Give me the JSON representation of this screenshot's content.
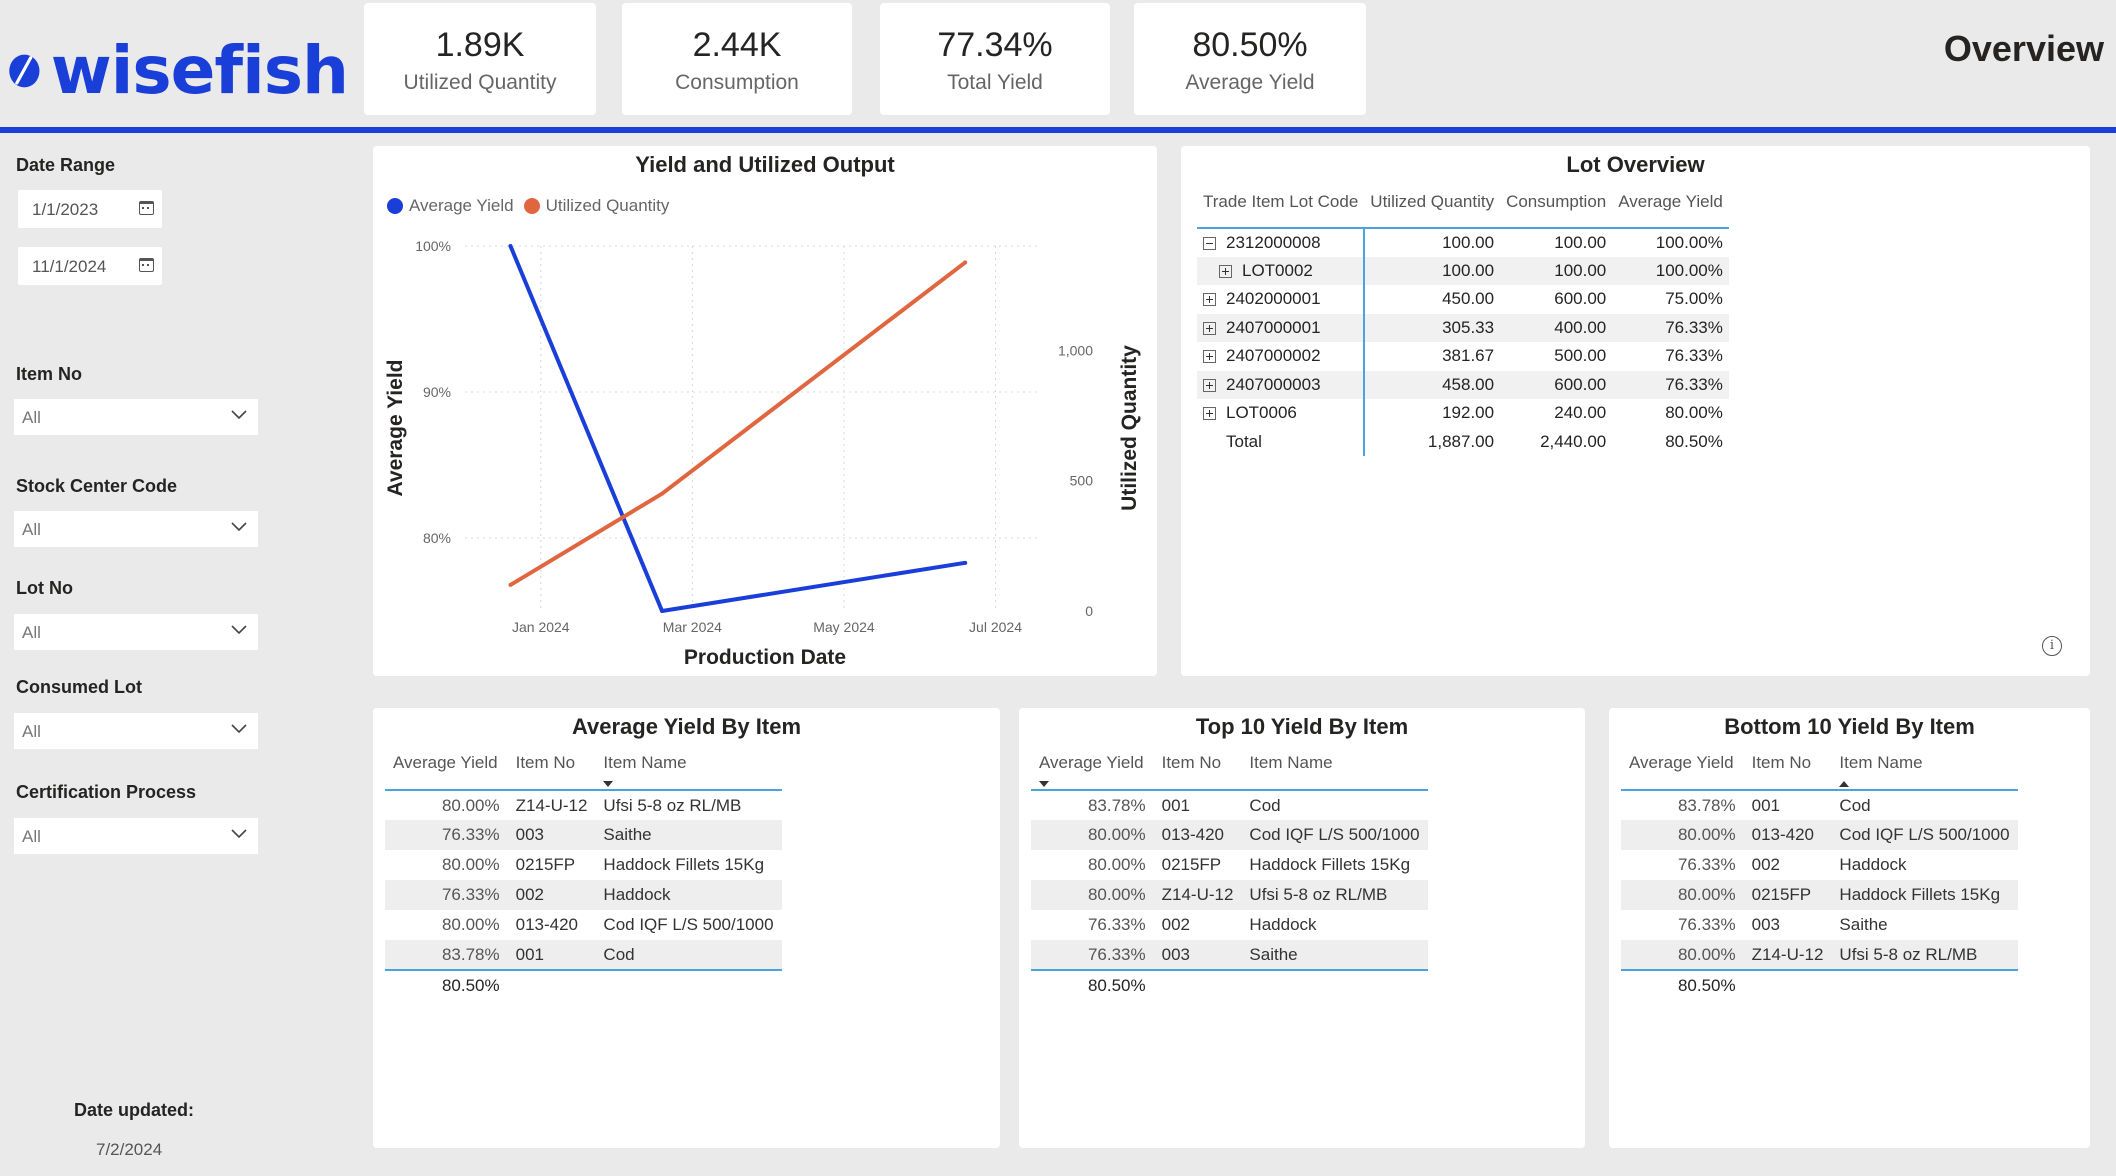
{
  "brand": {
    "name": "wisefish",
    "color": "#1a3fd9"
  },
  "page_title": "Overview",
  "kpis": [
    {
      "value": "1.89K",
      "label": "Utilized Quantity"
    },
    {
      "value": "2.44K",
      "label": "Consumption"
    },
    {
      "value": "77.34%",
      "label": "Total Yield"
    },
    {
      "value": "80.50%",
      "label": "Average Yield"
    }
  ],
  "filters": {
    "date_range": {
      "label": "Date Range",
      "start": "1/1/2023",
      "end": "11/1/2024"
    },
    "item_no": {
      "label": "Item No",
      "value": "All"
    },
    "stock_center": {
      "label": "Stock Center Code",
      "value": "All"
    },
    "lot_no": {
      "label": "Lot No",
      "value": "All"
    },
    "consumed_lot": {
      "label": "Consumed Lot",
      "value": "All"
    },
    "cert_process": {
      "label": "Certification Process",
      "value": "All"
    }
  },
  "date_updated": {
    "label": "Date updated:",
    "value": "7/2/2024"
  },
  "chart_data": {
    "type": "line",
    "title": "Yield and Utilized Output",
    "xlabel": "Production Date",
    "ylabel": "Average Yield",
    "y2label": "Utilized Quantity",
    "x_ticks": [
      "Jan 2024",
      "Mar 2024",
      "May 2024",
      "Jul 2024"
    ],
    "y_ticks": [
      "100%",
      "90%",
      "80%"
    ],
    "y2_ticks": [
      "1,000",
      "500",
      "0"
    ],
    "ylim": [
      75,
      100
    ],
    "y2lim": [
      0,
      1400
    ],
    "x": [
      0.6,
      2.6,
      6.6
    ],
    "series": [
      {
        "name": "Average Yield",
        "axis": "left",
        "color": "#1a3fd9",
        "values": [
          100,
          75,
          78.3
        ]
      },
      {
        "name": "Utilized Quantity",
        "axis": "right",
        "color": "#e0663f",
        "values": [
          100,
          450,
          1337
        ]
      }
    ]
  },
  "lot_overview": {
    "title": "Lot Overview",
    "columns": [
      "Trade Item Lot Code",
      "Utilized Quantity",
      "Consumption",
      "Average Yield"
    ],
    "rows": [
      {
        "expander": "minus",
        "indent": false,
        "code": "2312000008",
        "utilized": "100.00",
        "consumption": "100.00",
        "yield": "100.00%"
      },
      {
        "expander": "plus",
        "indent": true,
        "code": "LOT0002",
        "utilized": "100.00",
        "consumption": "100.00",
        "yield": "100.00%"
      },
      {
        "expander": "plus",
        "indent": false,
        "code": "2402000001",
        "utilized": "450.00",
        "consumption": "600.00",
        "yield": "75.00%"
      },
      {
        "expander": "plus",
        "indent": false,
        "code": "2407000001",
        "utilized": "305.33",
        "consumption": "400.00",
        "yield": "76.33%"
      },
      {
        "expander": "plus",
        "indent": false,
        "code": "2407000002",
        "utilized": "381.67",
        "consumption": "500.00",
        "yield": "76.33%"
      },
      {
        "expander": "plus",
        "indent": false,
        "code": "2407000003",
        "utilized": "458.00",
        "consumption": "600.00",
        "yield": "76.33%"
      },
      {
        "expander": "plus",
        "indent": false,
        "code": "LOT0006",
        "utilized": "192.00",
        "consumption": "240.00",
        "yield": "80.00%"
      }
    ],
    "total": {
      "label": "Total",
      "utilized": "1,887.00",
      "consumption": "2,440.00",
      "yield": "80.50%"
    }
  },
  "avg_yield_by_item": {
    "title": "Average Yield By Item",
    "columns": [
      "Average Yield",
      "Item No",
      "Item Name"
    ],
    "sort": {
      "column": 2,
      "dir": "down"
    },
    "rows": [
      [
        "80.00%",
        "Z14-U-12",
        "Ufsi 5-8 oz RL/MB"
      ],
      [
        "76.33%",
        "003",
        "Saithe"
      ],
      [
        "80.00%",
        "0215FP",
        "Haddock Fillets 15Kg"
      ],
      [
        "76.33%",
        "002",
        "Haddock"
      ],
      [
        "80.00%",
        "013-420",
        "Cod IQF L/S 500/1000"
      ],
      [
        "83.78%",
        "001",
        "Cod"
      ]
    ],
    "total": "80.50%"
  },
  "top10_yield_by_item": {
    "title": "Top 10 Yield By Item",
    "columns": [
      "Average Yield",
      "Item No",
      "Item Name"
    ],
    "sort": {
      "column": 0,
      "dir": "down"
    },
    "rows": [
      [
        "83.78%",
        "001",
        "Cod"
      ],
      [
        "80.00%",
        "013-420",
        "Cod IQF L/S 500/1000"
      ],
      [
        "80.00%",
        "0215FP",
        "Haddock Fillets 15Kg"
      ],
      [
        "80.00%",
        "Z14-U-12",
        "Ufsi 5-8 oz RL/MB"
      ],
      [
        "76.33%",
        "002",
        "Haddock"
      ],
      [
        "76.33%",
        "003",
        "Saithe"
      ]
    ],
    "total": "80.50%"
  },
  "bottom10_yield_by_item": {
    "title": "Bottom 10 Yield By Item",
    "columns": [
      "Average Yield",
      "Item No",
      "Item Name"
    ],
    "sort": {
      "column": 2,
      "dir": "up"
    },
    "rows": [
      [
        "83.78%",
        "001",
        "Cod"
      ],
      [
        "80.00%",
        "013-420",
        "Cod IQF L/S 500/1000"
      ],
      [
        "76.33%",
        "002",
        "Haddock"
      ],
      [
        "80.00%",
        "0215FP",
        "Haddock Fillets 15Kg"
      ],
      [
        "76.33%",
        "003",
        "Saithe"
      ],
      [
        "80.00%",
        "Z14-U-12",
        "Ufsi 5-8 oz RL/MB"
      ]
    ],
    "total": "80.50%"
  }
}
